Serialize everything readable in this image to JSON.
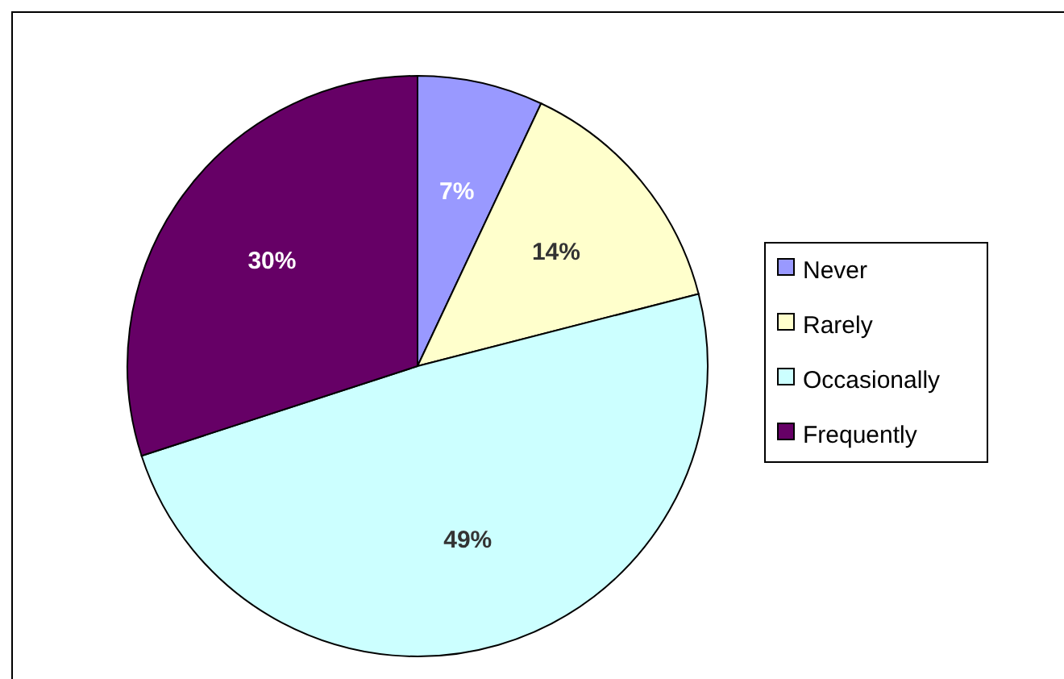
{
  "chart_data": {
    "type": "pie",
    "categories": [
      "Never",
      "Rarely",
      "Occasionally",
      "Frequently"
    ],
    "values": [
      7,
      14,
      49,
      30
    ],
    "colors": [
      "#9999ff",
      "#ffffcc",
      "#ccffff",
      "#660066"
    ],
    "value_labels": [
      "7%",
      "14%",
      "49%",
      "30%"
    ],
    "legend": "right"
  }
}
